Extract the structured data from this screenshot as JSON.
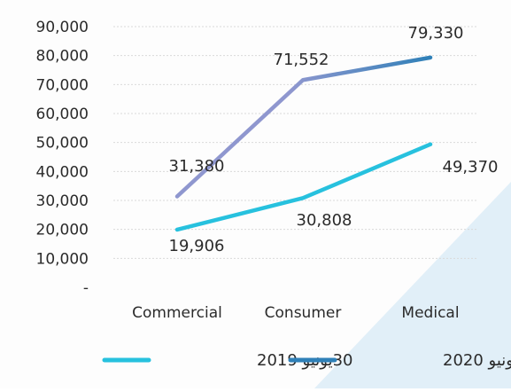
{
  "chart_data": {
    "type": "line",
    "categories": [
      "Commercial",
      "Consumer",
      "Medical"
    ],
    "series": [
      {
        "name": "30يونيو 2019",
        "values": [
          19906,
          30808,
          49370
        ],
        "value_labels": [
          "19,906",
          "30,808",
          "49,370"
        ],
        "color": "#27c1de"
      },
      {
        "name": "30يونيو 2020",
        "values": [
          31380,
          71552,
          79330
        ],
        "value_labels": [
          "31,380",
          "71,552",
          "79,330"
        ],
        "color": "#2f80b8",
        "start_color": "#8f97cf"
      }
    ],
    "y_ticks": [
      0,
      10000,
      20000,
      30000,
      40000,
      50000,
      60000,
      70000,
      80000,
      90000
    ],
    "y_tick_labels": [
      "-",
      "10,000",
      "20,000",
      "30,000",
      "40,000",
      "50,000",
      "60,000",
      "70,000",
      "80,000",
      "90,000"
    ],
    "ylim": [
      0,
      90000
    ],
    "grid": true,
    "legend_position": "bottom",
    "title": "",
    "xlabel": "",
    "ylabel": ""
  }
}
